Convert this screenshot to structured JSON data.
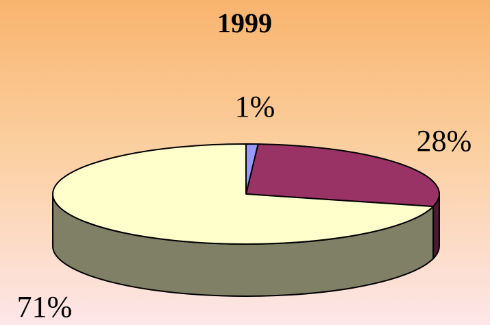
{
  "chart_data": {
    "type": "pie",
    "title": "1999",
    "values": [
      1,
      28,
      71
    ],
    "value_labels": [
      "1%",
      "28%",
      "71%"
    ],
    "colors": [
      "#9999ff",
      "#993366",
      "#ffffcc"
    ]
  }
}
